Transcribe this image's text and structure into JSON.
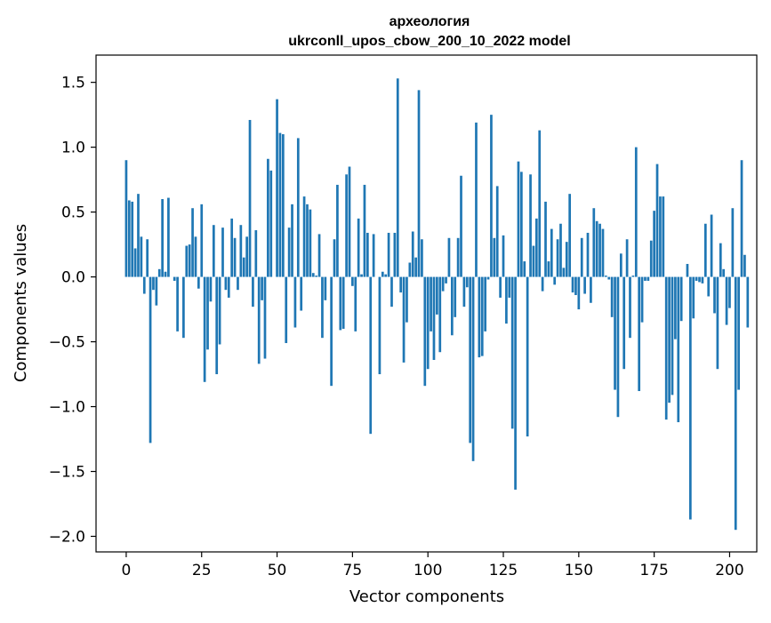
{
  "chart_data": {
    "type": "bar",
    "title_line1": "археология",
    "title_line2": "ukrconll_upos_cbow_200_10_2022 model",
    "xlabel": "Vector components",
    "ylabel": "Components values",
    "xlim": [
      -10,
      209
    ],
    "ylim": [
      -2.12,
      1.71
    ],
    "xticks": [
      0,
      25,
      50,
      75,
      100,
      125,
      150,
      175,
      200
    ],
    "xtick_labels": [
      "0",
      "25",
      "50",
      "75",
      "100",
      "125",
      "150",
      "175",
      "200"
    ],
    "yticks": [
      1.5,
      1.0,
      0.5,
      0.0,
      -0.5,
      -1.0,
      -1.5,
      -2.0
    ],
    "ytick_labels": [
      "1.5",
      "1.0",
      "0.5",
      "0.0",
      "−0.5",
      "−1.0",
      "−1.5",
      "−2.0"
    ],
    "bar_color": "#1f77b4",
    "values": [
      0.9,
      0.59,
      0.58,
      0.22,
      0.64,
      0.31,
      -0.13,
      0.29,
      -1.28,
      -0.1,
      -0.22,
      0.06,
      0.6,
      0.04,
      0.61,
      0.0,
      -0.03,
      -0.42,
      0.0,
      -0.47,
      0.24,
      0.25,
      0.53,
      0.31,
      -0.09,
      0.56,
      -0.81,
      -0.56,
      -0.19,
      0.4,
      -0.75,
      -0.52,
      0.38,
      -0.1,
      -0.16,
      0.45,
      0.3,
      -0.1,
      0.4,
      0.15,
      0.31,
      1.21,
      -0.23,
      0.36,
      -0.67,
      -0.18,
      -0.63,
      0.91,
      0.82,
      0.0,
      1.37,
      1.11,
      1.1,
      -0.51,
      0.38,
      0.56,
      -0.39,
      1.07,
      -0.26,
      0.62,
      0.56,
      0.52,
      0.03,
      0.01,
      0.33,
      -0.47,
      -0.18,
      0.0,
      -0.84,
      0.29,
      0.71,
      -0.41,
      -0.4,
      0.79,
      0.85,
      -0.07,
      -0.42,
      0.45,
      0.02,
      0.71,
      0.34,
      -1.21,
      0.33,
      0.0,
      -0.75,
      0.04,
      0.02,
      0.34,
      -0.23,
      0.34,
      1.53,
      -0.12,
      -0.66,
      -0.35,
      0.11,
      0.35,
      0.15,
      1.44,
      0.29,
      -0.84,
      -0.71,
      -0.42,
      -0.64,
      -0.29,
      -0.58,
      -0.11,
      -0.05,
      0.3,
      -0.45,
      -0.31,
      0.3,
      0.78,
      -0.23,
      -0.08,
      -1.28,
      -1.42,
      1.19,
      -0.62,
      -0.61,
      -0.42,
      -0.02,
      1.25,
      0.3,
      0.7,
      -0.16,
      0.32,
      -0.36,
      -0.16,
      -1.17,
      -1.64,
      0.89,
      0.81,
      0.12,
      -1.23,
      0.79,
      0.24,
      0.45,
      1.13,
      -0.11,
      0.58,
      0.12,
      0.37,
      -0.06,
      0.29,
      0.41,
      0.07,
      0.27,
      0.64,
      -0.12,
      -0.14,
      -0.25,
      0.3,
      -0.13,
      0.34,
      -0.2,
      0.53,
      0.43,
      0.41,
      0.37,
      0.01,
      -0.02,
      -0.31,
      -0.87,
      -1.08,
      0.18,
      -0.71,
      0.29,
      -0.47,
      0.01,
      1.0,
      -0.88,
      -0.35,
      -0.03,
      -0.03,
      0.28,
      0.51,
      0.87,
      0.62,
      0.62,
      -1.1,
      -0.97,
      -0.91,
      -0.48,
      -1.12,
      -0.34,
      0.0,
      0.1,
      -1.87,
      -0.32,
      -0.03,
      -0.04,
      -0.05,
      0.41,
      -0.15,
      0.48,
      -0.28,
      -0.71,
      0.26,
      0.06,
      -0.37,
      -0.24,
      0.53,
      -1.95,
      -0.87,
      0.9,
      0.17,
      -0.39
    ]
  }
}
